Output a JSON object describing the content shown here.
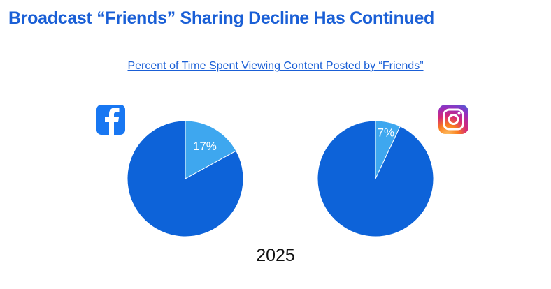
{
  "title": "Broadcast “Friends” Sharing Decline Has Continued",
  "colors": {
    "accent": "#1a5fd6",
    "pie_main": "#0d63d9",
    "pie_slice": "#3ea7ef",
    "facebook": "#1877f2",
    "text": "#111111"
  },
  "chart_data": [
    {
      "type": "pie",
      "title": "Percent of Time Spent Viewing Content Posted by “Friends”",
      "platform_icon": "facebook-logo-icon",
      "slices": [
        {
          "label": "17%",
          "value": 17,
          "color": "#3ea7ef"
        },
        {
          "label": "",
          "value": 83,
          "color": "#0d63d9"
        }
      ]
    },
    {
      "type": "pie",
      "title": "Percent of Time Spent Viewing Content Posted by “Friends”",
      "platform_icon": "instagram-logo-icon",
      "slices": [
        {
          "label": "7%",
          "value": 7,
          "color": "#3ea7ef"
        },
        {
          "label": "",
          "value": 93,
          "color": "#0d63d9"
        }
      ]
    }
  ],
  "year": "2025"
}
